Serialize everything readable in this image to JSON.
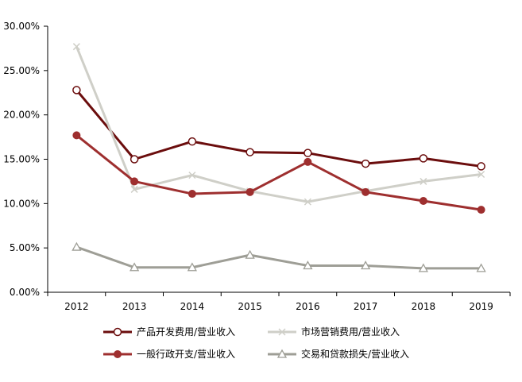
{
  "chart_data": {
    "type": "line",
    "categories": [
      "2012",
      "2013",
      "2014",
      "2015",
      "2016",
      "2017",
      "2018",
      "2019"
    ],
    "ylim": [
      0,
      30
    ],
    "yticks": [
      "0.00%",
      "5.00%",
      "10.00%",
      "15.00%",
      "20.00%",
      "25.00%",
      "30.00%"
    ],
    "grid": false,
    "legend_position": "bottom",
    "series": [
      {
        "name": "产品开发费用/营业收入",
        "color": "#6b0d0d",
        "marker": "open-circle",
        "values": [
          22.8,
          15.0,
          17.0,
          15.8,
          15.7,
          14.5,
          15.1,
          14.2
        ]
      },
      {
        "name": "市场营销费用/营业收入",
        "color": "#cfcfc8",
        "marker": "x",
        "values": [
          27.7,
          11.6,
          13.2,
          11.4,
          10.2,
          11.4,
          12.5,
          13.3
        ]
      },
      {
        "name": "一般行政开支/营业收入",
        "color": "#9e2f2f",
        "marker": "filled-circle",
        "values": [
          17.7,
          12.5,
          11.1,
          11.3,
          14.7,
          11.3,
          10.3,
          9.3
        ]
      },
      {
        "name": "交易和贷款损失/营业收入",
        "color": "#9e9e96",
        "marker": "open-triangle",
        "values": [
          5.1,
          2.8,
          2.8,
          4.2,
          3.0,
          3.0,
          2.7,
          2.7
        ]
      }
    ]
  }
}
